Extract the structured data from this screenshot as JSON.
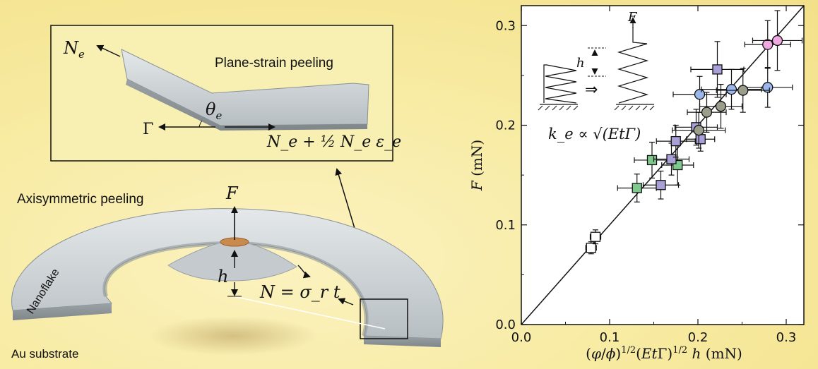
{
  "diagram": {
    "inset_title": "Plane-strain peeling",
    "inset_Ne": "N",
    "inset_Ne_sub": "e",
    "inset_theta": "θ",
    "inset_theta_sub": "e",
    "inset_gamma": "Γ",
    "inset_bottom": "N_e + ½ N_e ε_e",
    "axi_title": "Axisymmetric peeling",
    "force_label": "F",
    "h_label": "h",
    "N_label": "N = σ_r t",
    "nanoflake_label": "Nanoflake",
    "substrate_label": "Au substrate"
  },
  "chart_data": {
    "type": "scatter",
    "xlabel": "(φ/ϕ)^{1/2}(EtΓ)^{1/2} h (mN)",
    "ylabel": "F (mN)",
    "xlim": [
      0.0,
      0.32
    ],
    "ylim": [
      0.0,
      0.32
    ],
    "xticks": [
      "0.0",
      "0.1",
      "0.2",
      "0.3"
    ],
    "yticks": [
      "0.0",
      "0.1",
      "0.2",
      "0.3"
    ],
    "fit_line": {
      "x": [
        0.0,
        0.32
      ],
      "y": [
        0.0,
        0.32
      ]
    },
    "inset_label_F": "F",
    "inset_label_h": "h",
    "inset_arrow": "⇒",
    "inset_formula": "k_e ∝ √(EtΓ)",
    "series": [
      {
        "marker": "square",
        "color": "#ffffff",
        "points": [
          {
            "x": 0.079,
            "y": 0.077,
            "ex": 0.006,
            "ey": 0.006
          },
          {
            "x": 0.084,
            "y": 0.088,
            "ex": 0.006,
            "ey": 0.007
          }
        ]
      },
      {
        "marker": "square",
        "color": "#7fc98e",
        "points": [
          {
            "x": 0.131,
            "y": 0.137,
            "ex": 0.022,
            "ey": 0.014
          },
          {
            "x": 0.148,
            "y": 0.165,
            "ex": 0.02,
            "ey": 0.018
          },
          {
            "x": 0.177,
            "y": 0.16,
            "ex": 0.018,
            "ey": 0.02
          }
        ]
      },
      {
        "marker": "square",
        "color": "#a9a0d8",
        "points": [
          {
            "x": 0.158,
            "y": 0.14,
            "ex": 0.02,
            "ey": 0.014
          },
          {
            "x": 0.17,
            "y": 0.166,
            "ex": 0.02,
            "ey": 0.016
          },
          {
            "x": 0.175,
            "y": 0.184,
            "ex": 0.022,
            "ey": 0.016
          },
          {
            "x": 0.198,
            "y": 0.198,
            "ex": 0.024,
            "ey": 0.018
          },
          {
            "x": 0.203,
            "y": 0.186,
            "ex": 0.016,
            "ey": 0.012
          },
          {
            "x": 0.222,
            "y": 0.256,
            "ex": 0.03,
            "ey": 0.028
          }
        ]
      },
      {
        "marker": "circle",
        "color": "#9bb6ea",
        "points": [
          {
            "x": 0.202,
            "y": 0.231,
            "ex": 0.03,
            "ey": 0.018
          },
          {
            "x": 0.238,
            "y": 0.236,
            "ex": 0.034,
            "ey": 0.02
          },
          {
            "x": 0.279,
            "y": 0.238,
            "ex": 0.028,
            "ey": 0.02
          }
        ]
      },
      {
        "marker": "circle",
        "color": "#9a9e8a",
        "points": [
          {
            "x": 0.201,
            "y": 0.195,
            "ex": 0.03,
            "ey": 0.018
          },
          {
            "x": 0.21,
            "y": 0.213,
            "ex": 0.022,
            "ey": 0.02
          },
          {
            "x": 0.226,
            "y": 0.219,
            "ex": 0.024,
            "ey": 0.022
          },
          {
            "x": 0.251,
            "y": 0.235,
            "ex": 0.03,
            "ey": 0.022
          }
        ]
      },
      {
        "marker": "circle",
        "color": "#f0a8e0",
        "points": [
          {
            "x": 0.279,
            "y": 0.281,
            "ex": 0.026,
            "ey": 0.024
          },
          {
            "x": 0.29,
            "y": 0.285,
            "ex": 0.028,
            "ey": 0.03
          }
        ]
      }
    ]
  }
}
